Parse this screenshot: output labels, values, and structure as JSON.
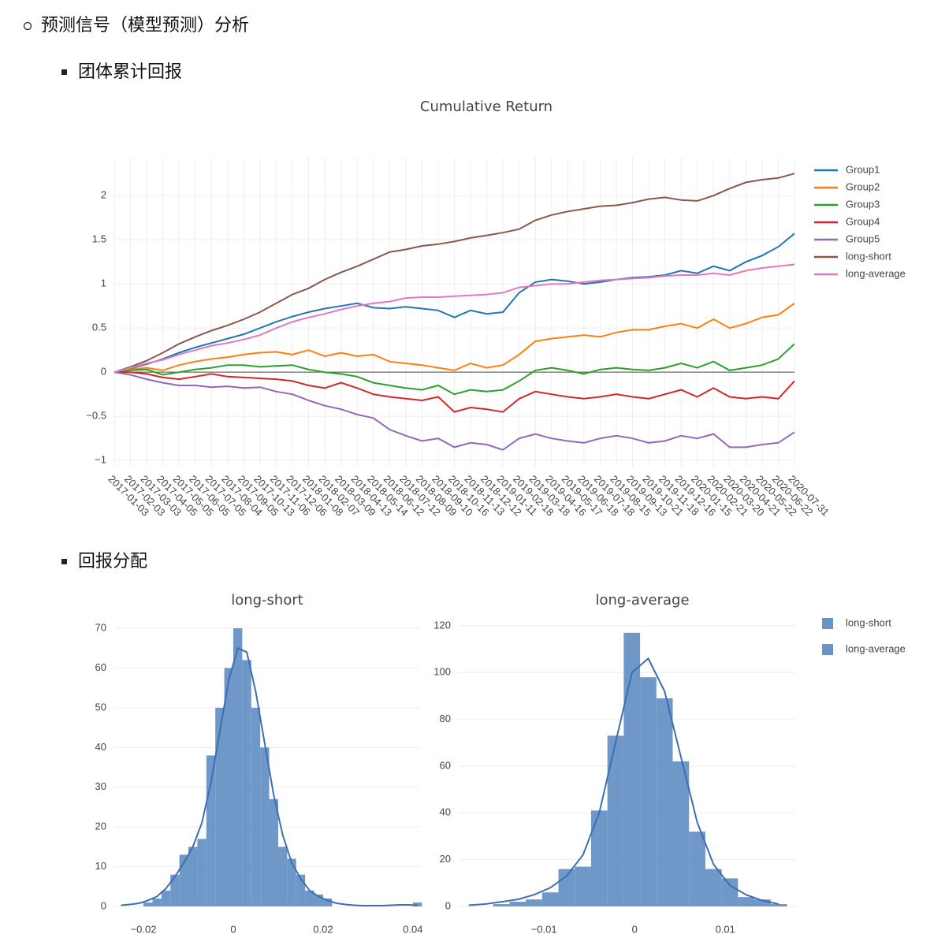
{
  "heading": "预测信号（模型预测）分析",
  "items": [
    "团体累计回报",
    "回报分配"
  ],
  "chart_data": [
    {
      "type": "line",
      "title": "Cumulative Return",
      "grid": true,
      "zeroline": true,
      "legend": "right",
      "categories": [
        "2017-01-03",
        "2017-02-03",
        "2017-03-03",
        "2017-04-05",
        "2017-05-05",
        "2017-06-05",
        "2017-07-05",
        "2017-08-04",
        "2017-09-05",
        "2017-10-13",
        "2017-11-06",
        "2017-12-06",
        "2018-01-08",
        "2018-02-07",
        "2018-03-09",
        "2018-04-13",
        "2018-05-14",
        "2018-06-12",
        "2018-07-12",
        "2018-08-09",
        "2018-09-10",
        "2018-10-16",
        "2018-11-13",
        "2018-12-12",
        "2019-01-11",
        "2019-02-18",
        "2019-03-18",
        "2019-04-16",
        "2019-05-17",
        "2019-06-18",
        "2019-07-18",
        "2019-08-15",
        "2019-09-13",
        "2019-10-21",
        "2019-11-18",
        "2019-12-16",
        "2020-01-15",
        "2020-02-21",
        "2020-03-20",
        "2020-04-21",
        "2020-05-22",
        "2020-06-22",
        "2020-07-31"
      ],
      "ylim": [
        -1.07,
        2.43
      ],
      "yticks": [
        {
          "value": -1,
          "label": "−1"
        },
        {
          "value": -0.5,
          "label": "−0.5"
        },
        0,
        0.5,
        1,
        1.5,
        2
      ],
      "series": [
        {
          "name": "Group1",
          "color": "#1f77b4",
          "values": [
            0,
            0.04,
            0.09,
            0.15,
            0.22,
            0.28,
            0.33,
            0.38,
            0.43,
            0.5,
            0.57,
            0.63,
            0.68,
            0.72,
            0.75,
            0.78,
            0.73,
            0.72,
            0.74,
            0.72,
            0.7,
            0.62,
            0.7,
            0.66,
            0.68,
            0.9,
            1.02,
            1.05,
            1.03,
            1.0,
            1.02,
            1.05,
            1.07,
            1.08,
            1.1,
            1.15,
            1.12,
            1.2,
            1.15,
            1.25,
            1.32,
            1.42,
            1.57
          ]
        },
        {
          "name": "Group2",
          "color": "#ff7f0e",
          "values": [
            0,
            0.03,
            0.05,
            0.02,
            0.08,
            0.12,
            0.15,
            0.17,
            0.2,
            0.22,
            0.23,
            0.2,
            0.25,
            0.18,
            0.22,
            0.18,
            0.2,
            0.12,
            0.1,
            0.08,
            0.05,
            0.02,
            0.1,
            0.05,
            0.08,
            0.2,
            0.35,
            0.38,
            0.4,
            0.42,
            0.4,
            0.45,
            0.48,
            0.48,
            0.52,
            0.55,
            0.5,
            0.6,
            0.5,
            0.55,
            0.62,
            0.65,
            0.78
          ]
        },
        {
          "name": "Group3",
          "color": "#2ca02c",
          "values": [
            0,
            0.02,
            0.03,
            -0.03,
            0.0,
            0.03,
            0.05,
            0.08,
            0.08,
            0.06,
            0.07,
            0.08,
            0.03,
            0.0,
            -0.02,
            -0.05,
            -0.12,
            -0.15,
            -0.18,
            -0.2,
            -0.15,
            -0.25,
            -0.2,
            -0.22,
            -0.2,
            -0.1,
            0.02,
            0.05,
            0.02,
            -0.02,
            0.03,
            0.05,
            0.03,
            0.02,
            0.05,
            0.1,
            0.05,
            0.12,
            0.02,
            0.05,
            0.08,
            0.15,
            0.32
          ]
        },
        {
          "name": "Group4",
          "color": "#d62728",
          "values": [
            0,
            0.0,
            -0.02,
            -0.06,
            -0.08,
            -0.05,
            -0.02,
            -0.05,
            -0.06,
            -0.07,
            -0.08,
            -0.1,
            -0.15,
            -0.18,
            -0.12,
            -0.18,
            -0.25,
            -0.28,
            -0.3,
            -0.32,
            -0.28,
            -0.45,
            -0.4,
            -0.42,
            -0.45,
            -0.3,
            -0.22,
            -0.25,
            -0.28,
            -0.3,
            -0.28,
            -0.25,
            -0.28,
            -0.3,
            -0.25,
            -0.2,
            -0.28,
            -0.18,
            -0.28,
            -0.3,
            -0.28,
            -0.3,
            -0.1
          ]
        },
        {
          "name": "Group5",
          "color": "#9467bd",
          "values": [
            0,
            -0.03,
            -0.08,
            -0.12,
            -0.15,
            -0.15,
            -0.17,
            -0.16,
            -0.18,
            -0.17,
            -0.22,
            -0.25,
            -0.32,
            -0.38,
            -0.42,
            -0.48,
            -0.52,
            -0.65,
            -0.72,
            -0.78,
            -0.75,
            -0.85,
            -0.8,
            -0.82,
            -0.88,
            -0.75,
            -0.7,
            -0.75,
            -0.78,
            -0.8,
            -0.75,
            -0.72,
            -0.75,
            -0.8,
            -0.78,
            -0.72,
            -0.75,
            -0.7,
            -0.85,
            -0.85,
            -0.82,
            -0.8,
            -0.68
          ]
        },
        {
          "name": "long-short",
          "color": "#8c564b",
          "values": [
            0,
            0.06,
            0.13,
            0.22,
            0.32,
            0.4,
            0.47,
            0.53,
            0.6,
            0.68,
            0.78,
            0.88,
            0.95,
            1.05,
            1.13,
            1.2,
            1.28,
            1.36,
            1.39,
            1.43,
            1.45,
            1.48,
            1.52,
            1.55,
            1.58,
            1.62,
            1.72,
            1.78,
            1.82,
            1.85,
            1.88,
            1.89,
            1.92,
            1.96,
            1.98,
            1.95,
            1.94,
            2.0,
            2.08,
            2.15,
            2.18,
            2.2,
            2.25
          ]
        },
        {
          "name": "long-average",
          "color": "#e377c2",
          "values": [
            0,
            0.05,
            0.1,
            0.14,
            0.2,
            0.25,
            0.3,
            0.33,
            0.37,
            0.42,
            0.5,
            0.57,
            0.62,
            0.66,
            0.71,
            0.75,
            0.78,
            0.8,
            0.84,
            0.85,
            0.85,
            0.86,
            0.87,
            0.88,
            0.9,
            0.96,
            0.98,
            1.0,
            1.0,
            1.02,
            1.04,
            1.05,
            1.06,
            1.07,
            1.09,
            1.1,
            1.1,
            1.12,
            1.1,
            1.15,
            1.18,
            1.2,
            1.22
          ]
        }
      ]
    },
    {
      "type": "histogram",
      "title": "long-short",
      "name": "long-short",
      "color": "#4f81bd",
      "grid": true,
      "bins": [
        -0.026,
        -0.024,
        -0.022,
        -0.02,
        -0.018,
        -0.016,
        -0.014,
        -0.012,
        -0.01,
        -0.008,
        -0.006,
        -0.004,
        -0.002,
        0,
        0.002,
        0.004,
        0.006,
        0.008,
        0.01,
        0.012,
        0.014,
        0.016,
        0.018,
        0.02,
        0.022,
        0.024,
        0.026,
        0.028,
        0.03,
        0.032,
        0.034,
        0.036,
        0.038,
        0.04,
        0.042
      ],
      "values": [
        0,
        0,
        0,
        1,
        2,
        4,
        8,
        13,
        15,
        17,
        38,
        50,
        60,
        70,
        62,
        50,
        40,
        27,
        15,
        12,
        8,
        4,
        3,
        2,
        0,
        0,
        0,
        0,
        0,
        0,
        0,
        0,
        0,
        1
      ],
      "kde_values": [
        0.3,
        0.5,
        0.8,
        1.5,
        2.5,
        4.5,
        7.5,
        11,
        15,
        21,
        31,
        44,
        57,
        65,
        64,
        54,
        41,
        28,
        18,
        11,
        7,
        4,
        2.5,
        1.5,
        0.8,
        0.5,
        0.3,
        0.2,
        0.2,
        0.2,
        0.3,
        0.4,
        0.4,
        0.3
      ],
      "xlim": [
        -0.0265,
        0.0416
      ],
      "ylim": [
        0,
        72.4
      ],
      "xticks": [
        {
          "value": -0.02,
          "label": "−0.02"
        },
        0,
        0.02,
        0.04
      ],
      "yticks": [
        0,
        10,
        20,
        30,
        40,
        50,
        60,
        70
      ]
    },
    {
      "type": "histogram",
      "title": "long-average",
      "name": "long-average",
      "color": "#4f81bd",
      "grid": true,
      "bins": [
        -0.0192,
        -0.0174,
        -0.0156,
        -0.0138,
        -0.012,
        -0.0102,
        -0.0084,
        -0.0066,
        -0.0048,
        -0.003,
        -0.0012,
        0.0006,
        0.0024,
        0.0042,
        0.006,
        0.0078,
        0.0096,
        0.0114,
        0.0132,
        0.015,
        0.0168
      ],
      "values": [
        0,
        0,
        1,
        2,
        3,
        6,
        16,
        17,
        41,
        73,
        117,
        98,
        89,
        62,
        32,
        16,
        12,
        4,
        3,
        1
      ],
      "kde_values": [
        0.5,
        1,
        2,
        3,
        5,
        8,
        13,
        22,
        40,
        70,
        100,
        106,
        92,
        64,
        36,
        18,
        9,
        5,
        2.5,
        1
      ],
      "xlim": [
        -0.0194,
        0.0178
      ],
      "ylim": [
        0,
        123
      ],
      "xticks": [
        {
          "value": -0.01,
          "label": "−0.01"
        },
        0,
        0.01
      ],
      "yticks": [
        0,
        20,
        40,
        60,
        80,
        100,
        120
      ]
    }
  ]
}
